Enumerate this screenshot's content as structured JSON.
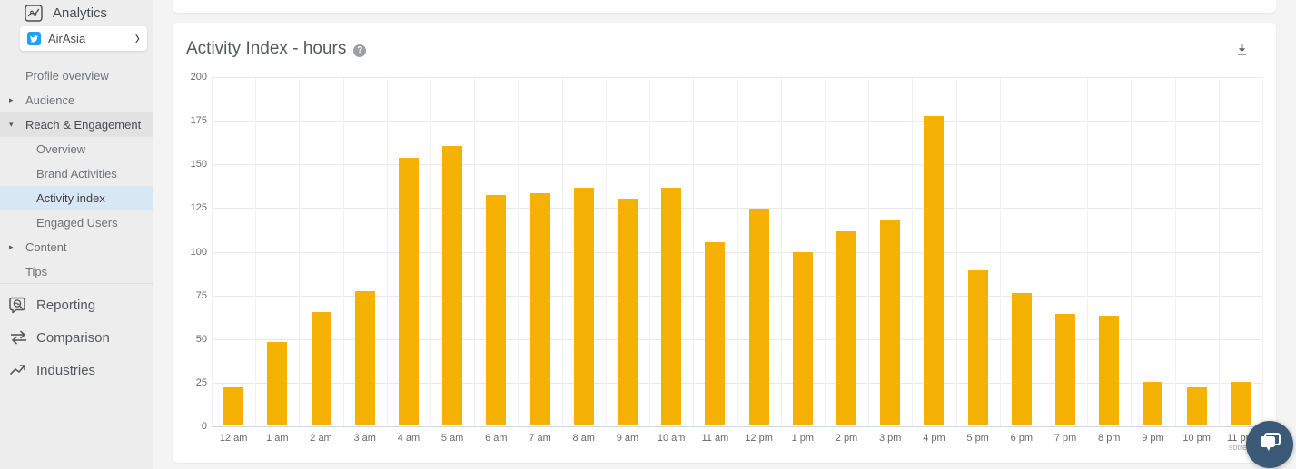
{
  "sidebar": {
    "header": {
      "label": "Analytics"
    },
    "profile": {
      "name": "AirAsia",
      "network": "twitter",
      "chevron": "›"
    },
    "items": [
      {
        "label": "Profile overview",
        "level": 1,
        "arrow": null,
        "highlight": null
      },
      {
        "label": "Audience",
        "level": 1,
        "arrow": "right",
        "highlight": null
      },
      {
        "label": "Reach & Engagement",
        "level": 1,
        "arrow": "down",
        "highlight": "gray"
      },
      {
        "label": "Overview",
        "level": 2,
        "arrow": null,
        "highlight": null
      },
      {
        "label": "Brand Activities",
        "level": 2,
        "arrow": null,
        "highlight": null
      },
      {
        "label": "Activity index",
        "level": 2,
        "arrow": null,
        "highlight": "blue"
      },
      {
        "label": "Engaged Users",
        "level": 2,
        "arrow": null,
        "highlight": null
      },
      {
        "label": "Content",
        "level": 1,
        "arrow": "right",
        "highlight": null
      },
      {
        "label": "Tips",
        "level": 1,
        "arrow": null,
        "highlight": null
      }
    ],
    "bottom_items": [
      {
        "label": "Reporting",
        "icon": "reporting-icon"
      },
      {
        "label": "Comparison",
        "icon": "comparison-icon"
      },
      {
        "label": "Industries",
        "icon": "industries-icon"
      }
    ]
  },
  "main": {
    "card_title": "Activity Index - hours",
    "help_label": "?",
    "watermark": "sotrender"
  },
  "chart_data": {
    "type": "bar",
    "title": "Activity Index - hours",
    "categories": [
      "12 am",
      "1 am",
      "2 am",
      "3 am",
      "4 am",
      "5 am",
      "6 am",
      "7 am",
      "8 am",
      "9 am",
      "10 am",
      "11 am",
      "12 pm",
      "1 pm",
      "2 pm",
      "3 pm",
      "4 pm",
      "5 pm",
      "6 pm",
      "7 pm",
      "8 pm",
      "9 pm",
      "10 pm",
      "11 pm"
    ],
    "values": [
      22,
      48,
      65,
      77,
      153,
      160,
      132,
      133,
      136,
      130,
      136,
      105,
      124,
      99,
      111,
      118,
      177,
      89,
      76,
      64,
      63,
      25,
      22,
      25
    ],
    "xlabel": "",
    "ylabel": "",
    "ylim": [
      0,
      200
    ],
    "ytick_step": 25,
    "grid": true,
    "legend": false,
    "bar_color": "#F6B204"
  },
  "colors": {
    "bar": "#F6B204",
    "twitter_blue": "#1DA1F2",
    "selected_item_bg": "#d8e7f4",
    "section_item_bg": "#e2e2e2",
    "sidebar_bg": "#ededed",
    "chat_bubble": "#3a5a78",
    "axis_line": "#ccd9e8"
  }
}
